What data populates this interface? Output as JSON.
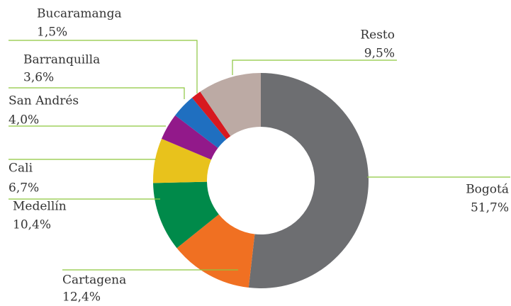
{
  "chart_data": {
    "type": "donut",
    "categories": [
      "Bogotá",
      "Cartagena",
      "Medellín",
      "Cali",
      "San Andrés",
      "Barranquilla",
      "Bucaramanga",
      "Resto"
    ],
    "values": [
      51.7,
      12.4,
      10.4,
      6.7,
      4.0,
      3.6,
      1.5,
      9.5
    ],
    "value_labels": [
      "51,7%",
      "12,4%",
      "10,4%",
      "6,7%",
      "4,0%",
      "3,6%",
      "1,5%",
      "9,5%"
    ],
    "colors": [
      "#6d6e71",
      "#f07022",
      "#008a4a",
      "#e8c21c",
      "#92198a",
      "#1f6fc0",
      "#d71920",
      "#bcaaa4"
    ]
  }
}
